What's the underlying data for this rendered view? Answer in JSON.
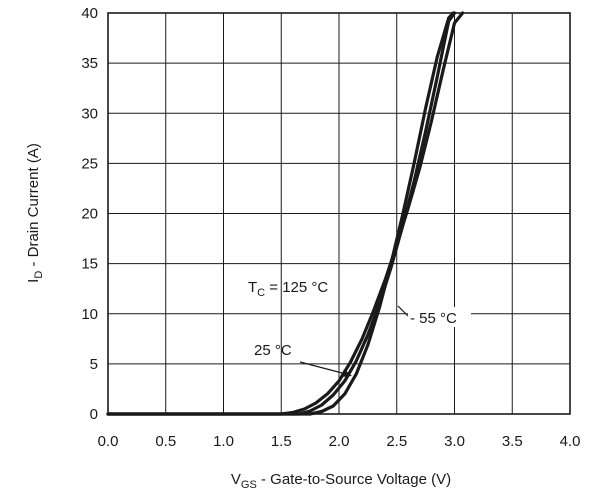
{
  "chart_data": {
    "type": "line",
    "xlabel": {
      "main": "V",
      "sub": "GS",
      "rest": " - Gate-to-Source Voltage (V)"
    },
    "ylabel": {
      "main": "I",
      "sub": "D",
      "rest": " - Drain Current (A)"
    },
    "xlim": [
      0,
      4
    ],
    "ylim": [
      0,
      40
    ],
    "xticks": [
      "0.0",
      "0.5",
      "1.0",
      "1.5",
      "2.0",
      "2.5",
      "3.0",
      "3.5",
      "4.0"
    ],
    "yticks": [
      "0",
      "5",
      "10",
      "15",
      "20",
      "25",
      "30",
      "35",
      "40"
    ],
    "grid": true,
    "series": [
      {
        "name": "125 °C",
        "x": [
          0,
          1.5,
          1.6,
          1.7,
          1.8,
          1.9,
          2.0,
          2.1,
          2.2,
          2.3,
          2.4,
          2.5,
          2.6,
          2.7,
          2.8,
          2.9,
          3.0,
          3.07
        ],
        "y": [
          0,
          0,
          0.15,
          0.5,
          1.1,
          2.0,
          3.3,
          5.2,
          7.5,
          10.3,
          13.4,
          16.9,
          20.6,
          24.6,
          29.2,
          34.2,
          39.0,
          40
        ]
      },
      {
        "name": "25 °C",
        "x": [
          0,
          1.65,
          1.75,
          1.85,
          1.95,
          2.05,
          2.15,
          2.25,
          2.35,
          2.45,
          2.55,
          2.65,
          2.75,
          2.85,
          2.95,
          3.0
        ],
        "y": [
          0,
          0,
          0.3,
          0.9,
          1.9,
          3.3,
          5.3,
          7.9,
          11.0,
          14.6,
          18.7,
          23.2,
          28.2,
          33.6,
          39.2,
          40
        ]
      },
      {
        "name": "- 55 °C",
        "x": [
          0,
          1.75,
          1.85,
          1.95,
          2.05,
          2.15,
          2.25,
          2.35,
          2.45,
          2.55,
          2.65,
          2.75,
          2.85,
          2.95,
          2.99
        ],
        "y": [
          0,
          0,
          0.25,
          0.8,
          2.0,
          4.0,
          6.9,
          10.6,
          15.0,
          19.8,
          25.0,
          30.5,
          35.6,
          39.5,
          40
        ]
      }
    ],
    "annotations": {
      "tc_main": "T",
      "tc_sub": "C",
      "tc_rest": " = 125 °C",
      "t25": "25 °C",
      "tm55": "- 55 °C"
    }
  }
}
